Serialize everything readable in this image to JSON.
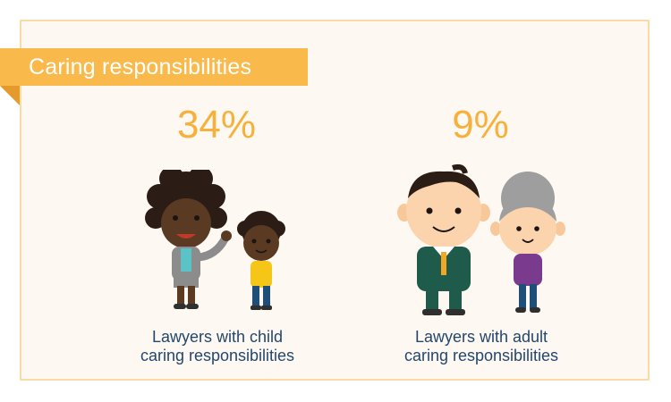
{
  "banner": {
    "title": "Caring responsibilities"
  },
  "stats": [
    {
      "value": "34%",
      "caption_line1": "Lawyers with child",
      "caption_line2": "caring responsibilities"
    },
    {
      "value": "9%",
      "caption_line1": "Lawyers with adult",
      "caption_line2": "caring responsibilities"
    }
  ],
  "colors": {
    "accent": "#f8b03c",
    "banner": "#fab94b",
    "text": "#24476e",
    "panel_bg": "#fdf9f2"
  },
  "icons": [
    "mother-with-child-illustration",
    "elderly-couple-illustration"
  ]
}
